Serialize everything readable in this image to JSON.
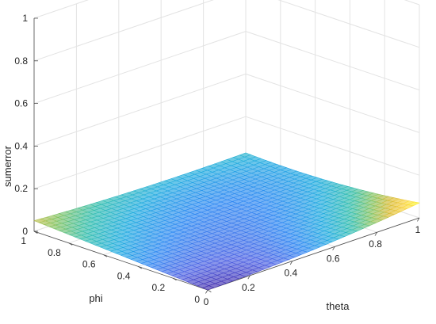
{
  "chart_data": {
    "type": "surface",
    "title": "",
    "xlabel": "theta",
    "ylabel": "phi",
    "zlabel": "sumerror",
    "xlim": [
      0,
      1
    ],
    "ylim": [
      0,
      1
    ],
    "zlim": [
      0,
      1
    ],
    "x_ticks": [
      "0",
      "0.2",
      "0.4",
      "0.6",
      "0.8",
      "1"
    ],
    "y_ticks": [
      "0",
      "0.2",
      "0.4",
      "0.6",
      "0.8",
      "1"
    ],
    "z_ticks": [
      "0",
      "0.2",
      "0.4",
      "0.6",
      "0.8",
      "1"
    ],
    "grid": true,
    "colormap": "parula",
    "colormap_stops": [
      "#3e26a8",
      "#4a5fe3",
      "#2a86f2",
      "#1caadf",
      "#2dbcad",
      "#81c25e",
      "#d9b92f",
      "#fbd33d",
      "#f9fb15"
    ],
    "color_limits": [
      0.0,
      0.07
    ],
    "surface_samples": {
      "theta": [
        0,
        0.5,
        1
      ],
      "phi": [
        0,
        0.5,
        1
      ],
      "sumerror": [
        [
          0.0,
          0.02,
          0.07
        ],
        [
          0.025,
          0.015,
          0.03
        ],
        [
          0.05,
          0.03,
          0.03
        ]
      ],
      "note_row_index": "rows = phi samples, columns = theta samples"
    }
  }
}
